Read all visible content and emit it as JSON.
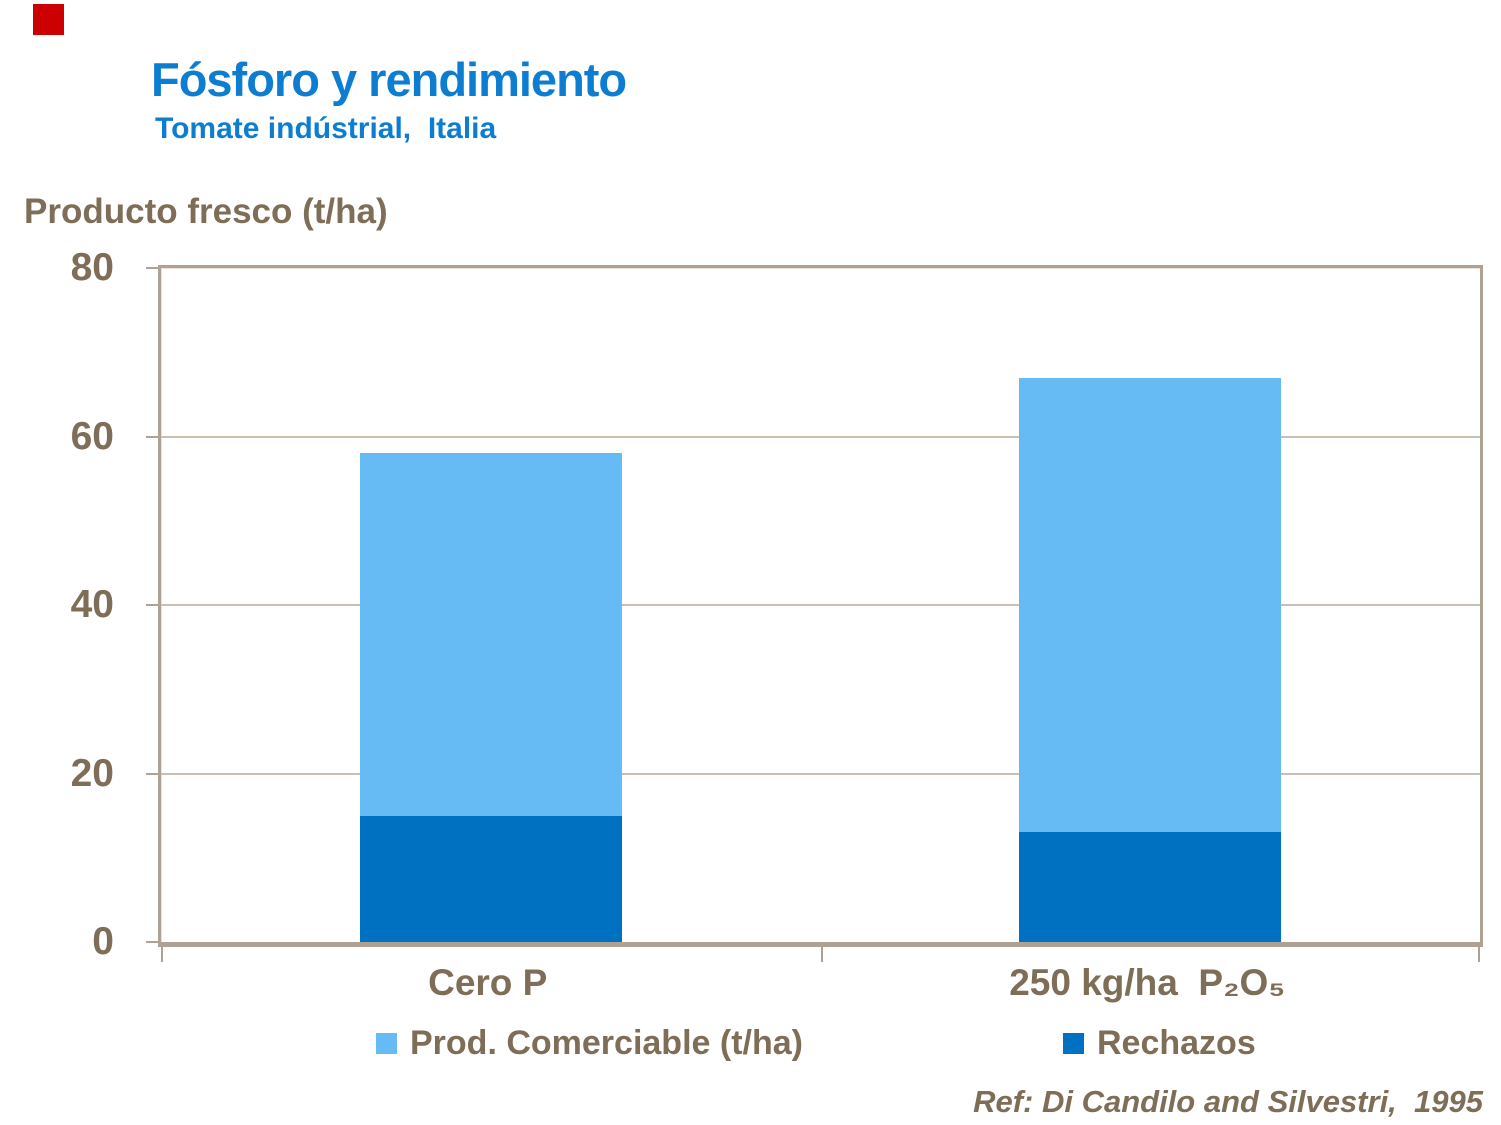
{
  "page": {
    "title": "Fósforo y rendimiento",
    "subtitle": "Tomate indústrial,  Italia",
    "axis_title": "Producto fresco (t/ha)",
    "reference": "Ref: Di Candilo and Silvestri,  1995"
  },
  "colors": {
    "title_blue": "#0D7DD1",
    "text_brown": "#7E6D57",
    "axis_line": "#AFA294",
    "gridline": "#C9C0B3",
    "comerciable_blue": "#66BBF4",
    "rechazos_blue": "#0071C1",
    "accent_red": "#CC0000"
  },
  "chart_data": {
    "type": "bar",
    "stacked": true,
    "categories": [
      "Cero P",
      "250 kg/ha  P₂O₅"
    ],
    "series": [
      {
        "name": "Prod. Comerciable (t/ha)",
        "values": [
          43,
          54
        ],
        "color": "#66BBF4",
        "stack_position": "top"
      },
      {
        "name": "Rechazos",
        "values": [
          15,
          13
        ],
        "color": "#0071C1",
        "stack_position": "bottom"
      }
    ],
    "stack_totals": [
      58,
      67
    ],
    "title": "",
    "xlabel": "",
    "ylabel": "Producto fresco (t/ha)",
    "ylim": [
      0,
      80
    ],
    "yticks": [
      0,
      20,
      40,
      60,
      80
    ],
    "grid": true,
    "legend_position": "bottom"
  },
  "legend": {
    "items": [
      {
        "label": "Prod. Comerciable (t/ha)",
        "color": "#66BBF4"
      },
      {
        "label": "Rechazos",
        "color": "#0071C1"
      }
    ]
  }
}
